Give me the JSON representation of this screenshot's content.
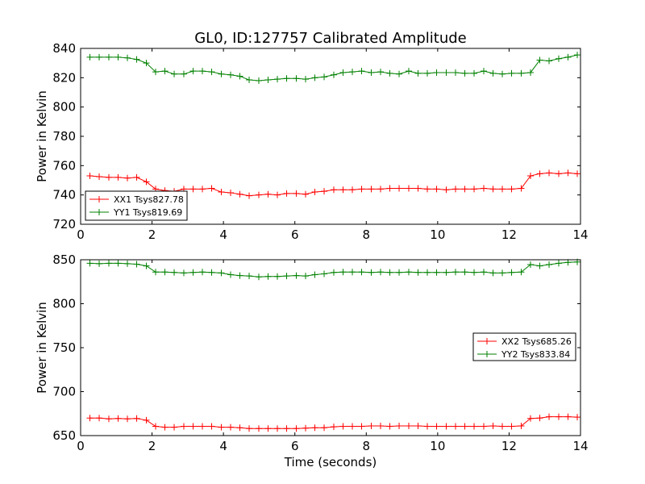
{
  "figure": {
    "title": "GL0, ID:127757 Calibrated Amplitude",
    "xlabel": "Time (seconds)"
  },
  "chart_data": [
    {
      "type": "line",
      "title": "GL0, ID:127757 Calibrated Amplitude",
      "xlabel": "",
      "ylabel": "Power in Kelvin",
      "xlim": [
        0,
        14
      ],
      "ylim": [
        720,
        840
      ],
      "xticks": [
        0,
        2,
        4,
        6,
        8,
        10,
        12,
        14
      ],
      "yticks": [
        720,
        740,
        760,
        780,
        800,
        820,
        840
      ],
      "grid": false,
      "legend_position": "lower-left",
      "x": [
        0.26,
        0.52,
        0.79,
        1.05,
        1.31,
        1.57,
        1.84,
        2.1,
        2.36,
        2.62,
        2.89,
        3.15,
        3.41,
        3.67,
        3.94,
        4.2,
        4.46,
        4.72,
        4.99,
        5.25,
        5.51,
        5.77,
        6.04,
        6.3,
        6.56,
        6.82,
        7.09,
        7.35,
        7.61,
        7.87,
        8.14,
        8.4,
        8.66,
        8.92,
        9.19,
        9.45,
        9.71,
        9.97,
        10.24,
        10.5,
        10.76,
        11.02,
        11.29,
        11.55,
        11.81,
        12.07,
        12.34,
        12.6,
        12.86,
        13.12,
        13.39,
        13.65,
        13.91
      ],
      "series": [
        {
          "name": "XX1 Tsys827.78",
          "color": "#ff0000",
          "values": [
            753,
            752.5,
            752,
            752,
            751.5,
            752,
            749,
            744,
            743,
            742.5,
            744,
            744,
            744,
            744.5,
            742,
            741.5,
            740.5,
            739.5,
            740,
            740.5,
            740,
            741,
            741,
            740.5,
            742,
            742.5,
            743.5,
            743.5,
            743.5,
            744,
            744,
            744,
            744.5,
            744.5,
            744.5,
            744.5,
            744,
            744,
            743.5,
            744,
            744,
            744,
            744.5,
            744,
            744,
            744,
            744.5,
            753,
            754.5,
            755,
            754.5,
            755,
            754.5
          ]
        },
        {
          "name": "YY1 Tsys819.69",
          "color": "#008000",
          "values": [
            834,
            834,
            834,
            834,
            833.5,
            832.5,
            830,
            824,
            824.5,
            822.5,
            822.5,
            824.5,
            824.5,
            824,
            822.5,
            822,
            821,
            818.5,
            818,
            818.5,
            819,
            819.5,
            819.5,
            819,
            820,
            820.5,
            822,
            823.5,
            824,
            824.5,
            823.5,
            824,
            823,
            822.5,
            824.5,
            823,
            823,
            823.5,
            823.5,
            823.5,
            823,
            823,
            824.5,
            823,
            822.5,
            823,
            823,
            823.5,
            832,
            831.5,
            833,
            834,
            835.5
          ]
        }
      ]
    },
    {
      "type": "line",
      "title": "",
      "xlabel": "Time (seconds)",
      "ylabel": "Power in Kelvin",
      "xlim": [
        0,
        14
      ],
      "ylim": [
        650,
        850
      ],
      "xticks": [
        0,
        2,
        4,
        6,
        8,
        10,
        12,
        14
      ],
      "yticks": [
        650,
        700,
        750,
        800,
        850
      ],
      "grid": false,
      "legend_position": "center-right",
      "x": [
        0.26,
        0.52,
        0.79,
        1.05,
        1.31,
        1.57,
        1.84,
        2.1,
        2.36,
        2.62,
        2.89,
        3.15,
        3.41,
        3.67,
        3.94,
        4.2,
        4.46,
        4.72,
        4.99,
        5.25,
        5.51,
        5.77,
        6.04,
        6.3,
        6.56,
        6.82,
        7.09,
        7.35,
        7.61,
        7.87,
        8.14,
        8.4,
        8.66,
        8.92,
        9.19,
        9.45,
        9.71,
        9.97,
        10.24,
        10.5,
        10.76,
        11.02,
        11.29,
        11.55,
        11.81,
        12.07,
        12.34,
        12.6,
        12.86,
        13.12,
        13.39,
        13.65,
        13.91
      ],
      "series": [
        {
          "name": "XX2 Tsys685.26",
          "color": "#ff0000",
          "values": [
            670,
            670,
            669,
            669.5,
            669,
            669.5,
            667.5,
            660.5,
            659.5,
            659.5,
            660.5,
            660.5,
            660.5,
            660.5,
            659.5,
            659.5,
            659,
            658,
            658,
            658,
            658,
            658,
            658,
            658.5,
            659,
            659,
            660,
            660.5,
            660.5,
            660.5,
            661,
            661,
            660.5,
            661,
            661,
            661,
            660.5,
            660.5,
            660.5,
            660.5,
            660.5,
            660.5,
            660.5,
            661,
            660.5,
            660.5,
            661,
            669.5,
            670,
            671.5,
            671.5,
            671.5,
            671
          ]
        },
        {
          "name": "YY2 Tsys833.84",
          "color": "#008000",
          "values": [
            846,
            845.5,
            846,
            846,
            845.5,
            845,
            843,
            836,
            836,
            835.5,
            835,
            835.5,
            836,
            835.5,
            835,
            833,
            832,
            831.5,
            830.5,
            831,
            831,
            831.5,
            832,
            831.5,
            833,
            834,
            835.5,
            836,
            836,
            836,
            835.5,
            836,
            835.5,
            835.5,
            836,
            835.5,
            835.5,
            835.5,
            835.5,
            836,
            836,
            835.5,
            836,
            835,
            835,
            835.5,
            836,
            844.5,
            843,
            844.5,
            846,
            847,
            847.5
          ]
        }
      ]
    }
  ]
}
